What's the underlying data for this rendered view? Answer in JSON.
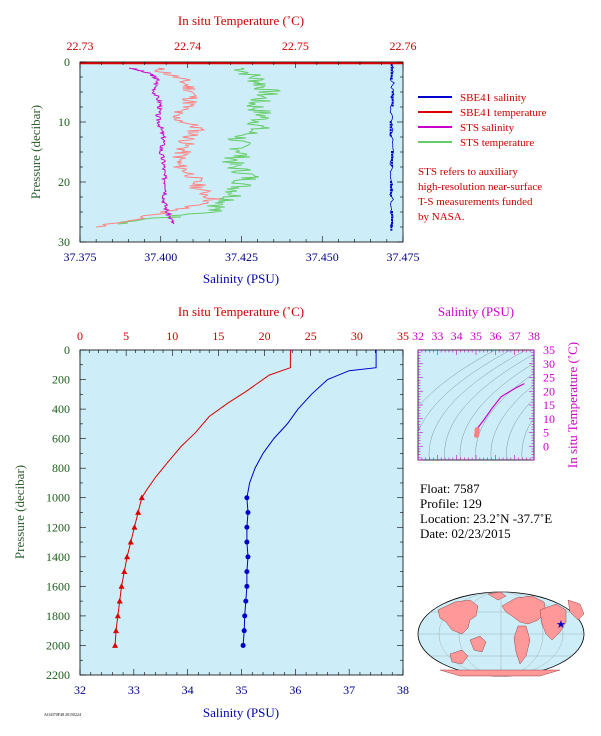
{
  "colors": {
    "plot_bg": "#cdeef8",
    "salinity": "#0000cc",
    "temperature": "#dd0000",
    "sts_salinity": "#cc00cc",
    "sts_temperature": "#66cc66",
    "sts_temperature_pink": "#ff8080",
    "pressure_axis": "#1e5a1e",
    "axis_red": "#cc0000",
    "axis_blue": "#00008b"
  },
  "top_panel": {
    "title_top": "In situ Temperature (˚C)",
    "title_bottom": "Salinity (PSU)",
    "ylabel": "Pressure (decibar)",
    "legend": {
      "items": [
        {
          "label": "SBE41 salinity",
          "color": "#0000cc"
        },
        {
          "label": "SBE41 temperature",
          "color": "#dd0000"
        },
        {
          "label": "STS salinity",
          "color": "#cc00cc"
        },
        {
          "label": "STS temperature",
          "color": "#66cc66"
        }
      ],
      "note_lines": [
        "STS refers to auxiliary",
        "high-resolution near-surface",
        "T-S measurements funded",
        "by NASA."
      ]
    }
  },
  "bottom_panel": {
    "title_top": "In situ Temperature (˚C)",
    "title_bottom": "Salinity (PSU)",
    "ylabel": "Pressure (decibar)"
  },
  "ts_panel": {
    "title_top": "Salinity (PSU)",
    "ylabel": "In situ Temperature (˚C)"
  },
  "info": {
    "float": "Float: 7587",
    "profile": "Profile: 129",
    "location": "Location: 23.2˚N -37.7˚E",
    "date": "Date: 02/23/2015"
  },
  "footer_code": "AO4370F48 20150224",
  "chart_data": [
    {
      "type": "line",
      "name": "near-surface profile",
      "y_axis": {
        "label": "Pressure (decibar)",
        "range": [
          0,
          30
        ],
        "ticks": [
          0,
          10,
          20,
          30
        ],
        "inverted": true
      },
      "x_axis_bottom": {
        "label": "Salinity (PSU)",
        "range": [
          37.375,
          37.475
        ],
        "ticks": [
          "37.375",
          "37.400",
          "37.425",
          "37.450",
          "37.475"
        ]
      },
      "x_axis_top": {
        "label": "In situ Temperature (˚C)",
        "range": [
          22.73,
          22.76
        ],
        "ticks": [
          "22.73",
          "22.74",
          "22.75",
          "22.76"
        ]
      },
      "series": [
        {
          "name": "SBE41 salinity",
          "axis": "salinity",
          "points": [
            [
              37.4715,
              0.5
            ],
            [
              37.4718,
              5
            ],
            [
              37.4712,
              10
            ],
            [
              37.4716,
              15
            ],
            [
              37.4713,
              20
            ],
            [
              37.4716,
              25
            ],
            [
              37.4714,
              27.5
            ]
          ]
        },
        {
          "name": "SBE41 temperature",
          "axis": "temperature",
          "points": [
            [
              22.76,
              0.2
            ],
            [
              22.73,
              0.2
            ]
          ]
        },
        {
          "name": "STS salinity",
          "axis": "salinity",
          "points": [
            [
              37.3905,
              1
            ],
            [
              37.397,
              2
            ],
            [
              37.399,
              3
            ],
            [
              37.398,
              5
            ],
            [
              37.4,
              7
            ],
            [
              37.399,
              9
            ],
            [
              37.4,
              11
            ],
            [
              37.401,
              13
            ],
            [
              37.4,
              15
            ],
            [
              37.401,
              17
            ],
            [
              37.401,
              19
            ],
            [
              37.402,
              21
            ],
            [
              37.401,
              23
            ],
            [
              37.402,
              25
            ],
            [
              37.404,
              27
            ]
          ]
        },
        {
          "name": "STS temperature",
          "axis": "temperature",
          "points": [
            [
              22.745,
              1
            ],
            [
              22.7465,
              3
            ],
            [
              22.7475,
              5
            ],
            [
              22.7462,
              7
            ],
            [
              22.747,
              9
            ],
            [
              22.7465,
              11
            ],
            [
              22.7445,
              13
            ],
            [
              22.7452,
              15
            ],
            [
              22.744,
              17
            ],
            [
              22.7458,
              19
            ],
            [
              22.7448,
              21
            ],
            [
              22.744,
              23
            ],
            [
              22.742,
              25
            ],
            [
              22.7335,
              27
            ]
          ]
        },
        {
          "name": "STS temperature (pink)",
          "axis": "temperature",
          "points": [
            [
              22.737,
              1
            ],
            [
              22.7395,
              3
            ],
            [
              22.7405,
              5
            ],
            [
              22.7402,
              7
            ],
            [
              22.7385,
              9
            ],
            [
              22.741,
              11
            ],
            [
              22.74,
              13
            ],
            [
              22.7395,
              15
            ],
            [
              22.739,
              17
            ],
            [
              22.7405,
              19
            ],
            [
              22.741,
              21
            ],
            [
              22.7425,
              23
            ],
            [
              22.738,
              25
            ],
            [
              22.7315,
              27.5
            ]
          ]
        }
      ]
    },
    {
      "type": "line",
      "name": "full-depth profile",
      "y_axis": {
        "label": "Pressure (decibar)",
        "range": [
          0,
          2200
        ],
        "ticks": [
          0,
          200,
          400,
          600,
          800,
          1000,
          1200,
          1400,
          1600,
          1800,
          2000,
          2200
        ],
        "inverted": true
      },
      "x_axis_bottom": {
        "label": "Salinity (PSU)",
        "range": [
          32,
          38
        ],
        "ticks": [
          32,
          33,
          34,
          35,
          36,
          37,
          38
        ]
      },
      "x_axis_top": {
        "label": "In situ Temperature (˚C)",
        "range": [
          0,
          35
        ],
        "ticks": [
          0,
          5,
          10,
          15,
          20,
          25,
          30,
          35
        ]
      },
      "series": [
        {
          "name": "Salinity",
          "axis": "salinity",
          "points": [
            [
              37.5,
              0
            ],
            [
              37.5,
              120
            ],
            [
              37.0,
              140
            ],
            [
              36.6,
              200
            ],
            [
              36.3,
              300
            ],
            [
              36.05,
              400
            ],
            [
              35.85,
              500
            ],
            [
              35.6,
              600
            ],
            [
              35.4,
              700
            ],
            [
              35.25,
              800
            ],
            [
              35.15,
              900
            ],
            [
              35.1,
              1000
            ],
            [
              35.12,
              1100
            ],
            [
              35.1,
              1200
            ],
            [
              35.1,
              1300
            ],
            [
              35.12,
              1400
            ],
            [
              35.1,
              1500
            ],
            [
              35.1,
              1600
            ],
            [
              35.08,
              1700
            ],
            [
              35.06,
              1800
            ],
            [
              35.05,
              1900
            ],
            [
              35.03,
              2000
            ]
          ],
          "markers_from": 1000,
          "marker": "circle"
        },
        {
          "name": "Temperature",
          "axis": "temperature",
          "points": [
            [
              22.8,
              0
            ],
            [
              22.8,
              120
            ],
            [
              20.5,
              170
            ],
            [
              18.0,
              280
            ],
            [
              16.0,
              360
            ],
            [
              14.0,
              450
            ],
            [
              12.5,
              560
            ],
            [
              11.0,
              650
            ],
            [
              9.5,
              760
            ],
            [
              8.2,
              860
            ],
            [
              7.2,
              950
            ],
            [
              6.7,
              1000
            ],
            [
              6.3,
              1100
            ],
            [
              5.9,
              1200
            ],
            [
              5.5,
              1300
            ],
            [
              5.1,
              1400
            ],
            [
              4.8,
              1500
            ],
            [
              4.5,
              1600
            ],
            [
              4.3,
              1700
            ],
            [
              4.1,
              1800
            ],
            [
              3.9,
              1900
            ],
            [
              3.8,
              2000
            ]
          ],
          "markers_from": 1000,
          "marker": "triangle"
        }
      ]
    },
    {
      "type": "scatter",
      "name": "T-S diagram",
      "x_axis_top": {
        "label": "Salinity (PSU)",
        "range": [
          32,
          38
        ],
        "ticks": [
          32,
          33,
          34,
          35,
          36,
          37,
          38
        ]
      },
      "y_axis_right": {
        "label": "In situ Temperature (˚C)",
        "range": [
          -5,
          35
        ],
        "ticks": [
          0,
          5,
          10,
          15,
          20,
          25,
          30,
          35
        ]
      },
      "series": [
        {
          "name": "T-S curve",
          "points": [
            [
              35.03,
              4
            ],
            [
              35.05,
              5
            ],
            [
              35.1,
              6.7
            ],
            [
              35.4,
              9.5
            ],
            [
              35.85,
              14
            ],
            [
              36.3,
              18
            ],
            [
              37.0,
              21
            ],
            [
              37.5,
              22.8
            ]
          ]
        }
      ]
    }
  ]
}
